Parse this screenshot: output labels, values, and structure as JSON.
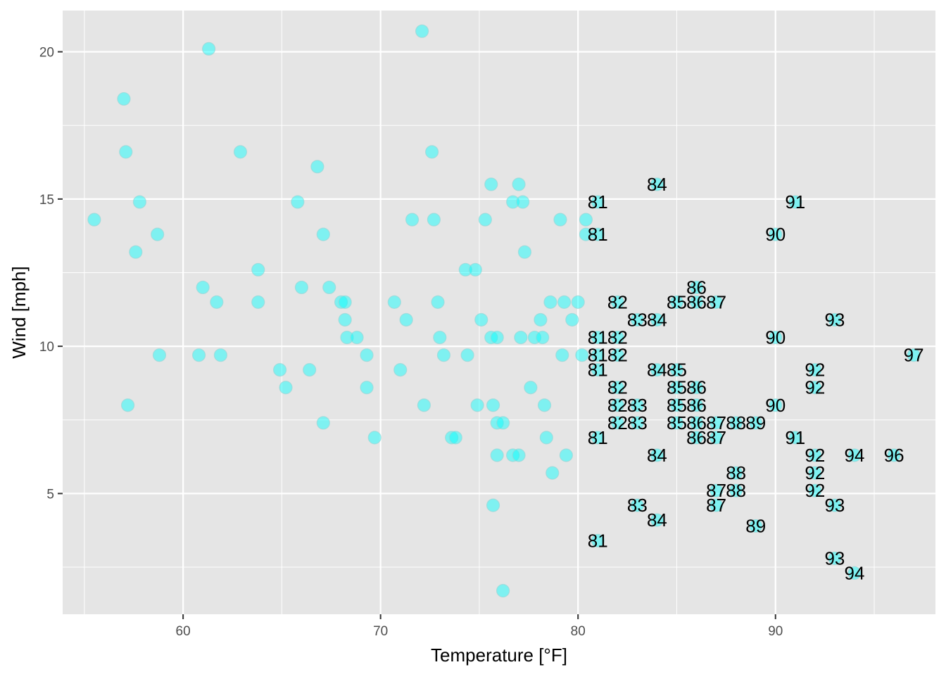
{
  "chart_data": {
    "type": "scatter",
    "title": "",
    "xlabel": "Temperature [°F]",
    "ylabel": "Wind [mph]",
    "xlim": [
      53.9,
      98.1
    ],
    "ylim": [
      0.9,
      21.4
    ],
    "x_ticks": [
      60,
      70,
      80,
      90
    ],
    "y_ticks": [
      5,
      10,
      15,
      20
    ],
    "grid": true,
    "legend": "none",
    "point_color": "#00FFFF",
    "point_opacity": 0.45,
    "panel_background": "#E5E5E5",
    "grid_color": "#FFFFFF",
    "label_threshold_note_hidden": false,
    "points": [
      {
        "x": 55.5,
        "y": 14.3
      },
      {
        "x": 57.0,
        "y": 18.4
      },
      {
        "x": 57.1,
        "y": 16.6
      },
      {
        "x": 57.2,
        "y": 8.0
      },
      {
        "x": 57.6,
        "y": 13.2
      },
      {
        "x": 57.8,
        "y": 14.9
      },
      {
        "x": 58.7,
        "y": 13.8
      },
      {
        "x": 58.8,
        "y": 9.7
      },
      {
        "x": 60.8,
        "y": 9.7
      },
      {
        "x": 61.0,
        "y": 12.0
      },
      {
        "x": 61.3,
        "y": 20.1
      },
      {
        "x": 61.7,
        "y": 11.5
      },
      {
        "x": 61.9,
        "y": 9.7
      },
      {
        "x": 62.9,
        "y": 16.6
      },
      {
        "x": 63.8,
        "y": 12.6
      },
      {
        "x": 63.8,
        "y": 11.5
      },
      {
        "x": 64.9,
        "y": 9.2
      },
      {
        "x": 65.2,
        "y": 8.6
      },
      {
        "x": 65.8,
        "y": 14.9
      },
      {
        "x": 66.0,
        "y": 12.0
      },
      {
        "x": 66.4,
        "y": 9.2
      },
      {
        "x": 66.8,
        "y": 16.1
      },
      {
        "x": 67.1,
        "y": 13.8
      },
      {
        "x": 67.1,
        "y": 7.4
      },
      {
        "x": 67.4,
        "y": 12.0
      },
      {
        "x": 68.0,
        "y": 11.5
      },
      {
        "x": 68.2,
        "y": 11.5
      },
      {
        "x": 68.2,
        "y": 10.9
      },
      {
        "x": 68.3,
        "y": 10.3
      },
      {
        "x": 68.8,
        "y": 10.3
      },
      {
        "x": 69.3,
        "y": 9.7
      },
      {
        "x": 69.3,
        "y": 8.6
      },
      {
        "x": 69.7,
        "y": 6.9
      },
      {
        "x": 70.7,
        "y": 11.5
      },
      {
        "x": 71.0,
        "y": 9.2
      },
      {
        "x": 71.3,
        "y": 10.9
      },
      {
        "x": 71.6,
        "y": 14.3
      },
      {
        "x": 72.1,
        "y": 20.7
      },
      {
        "x": 72.2,
        "y": 8.0
      },
      {
        "x": 72.6,
        "y": 16.6
      },
      {
        "x": 72.7,
        "y": 14.3
      },
      {
        "x": 72.9,
        "y": 11.5
      },
      {
        "x": 73.0,
        "y": 10.3
      },
      {
        "x": 73.2,
        "y": 9.7
      },
      {
        "x": 73.6,
        "y": 6.9
      },
      {
        "x": 73.8,
        "y": 6.9
      },
      {
        "x": 74.3,
        "y": 12.6
      },
      {
        "x": 74.4,
        "y": 9.7
      },
      {
        "x": 74.8,
        "y": 12.6
      },
      {
        "x": 74.9,
        "y": 8.0
      },
      {
        "x": 75.1,
        "y": 10.9
      },
      {
        "x": 75.3,
        "y": 14.3
      },
      {
        "x": 75.6,
        "y": 15.5
      },
      {
        "x": 75.6,
        "y": 10.3
      },
      {
        "x": 75.7,
        "y": 8.0
      },
      {
        "x": 75.7,
        "y": 4.6
      },
      {
        "x": 75.9,
        "y": 10.3
      },
      {
        "x": 75.9,
        "y": 7.4
      },
      {
        "x": 75.9,
        "y": 6.3
      },
      {
        "x": 76.2,
        "y": 7.4
      },
      {
        "x": 76.2,
        "y": 1.7
      },
      {
        "x": 76.7,
        "y": 14.9
      },
      {
        "x": 76.7,
        "y": 6.3
      },
      {
        "x": 77.0,
        "y": 15.5
      },
      {
        "x": 77.0,
        "y": 6.3
      },
      {
        "x": 77.1,
        "y": 10.3
      },
      {
        "x": 77.2,
        "y": 14.9
      },
      {
        "x": 77.3,
        "y": 13.2
      },
      {
        "x": 77.6,
        "y": 8.6
      },
      {
        "x": 77.8,
        "y": 10.3
      },
      {
        "x": 78.1,
        "y": 10.9
      },
      {
        "x": 78.2,
        "y": 10.3
      },
      {
        "x": 78.3,
        "y": 8.0
      },
      {
        "x": 78.4,
        "y": 6.9
      },
      {
        "x": 78.6,
        "y": 11.5
      },
      {
        "x": 78.7,
        "y": 5.7
      },
      {
        "x": 79.1,
        "y": 14.3
      },
      {
        "x": 79.2,
        "y": 9.7
      },
      {
        "x": 79.3,
        "y": 11.5
      },
      {
        "x": 79.4,
        "y": 6.3
      },
      {
        "x": 79.7,
        "y": 10.9
      },
      {
        "x": 80.0,
        "y": 11.5
      },
      {
        "x": 80.2,
        "y": 9.7
      },
      {
        "x": 80.4,
        "y": 14.3
      },
      {
        "x": 80.4,
        "y": 13.8
      },
      {
        "x": 81,
        "y": 14.9,
        "label": "81"
      },
      {
        "x": 81,
        "y": 13.8,
        "label": "81"
      },
      {
        "x": 81,
        "y": 10.3,
        "label": "81"
      },
      {
        "x": 81,
        "y": 9.7,
        "label": "81"
      },
      {
        "x": 81,
        "y": 9.2,
        "label": "81"
      },
      {
        "x": 81,
        "y": 6.9,
        "label": "81"
      },
      {
        "x": 81,
        "y": 3.4,
        "label": "81"
      },
      {
        "x": 82,
        "y": 11.5,
        "label": "82"
      },
      {
        "x": 82,
        "y": 10.3,
        "label": "82"
      },
      {
        "x": 82,
        "y": 9.7,
        "label": "82"
      },
      {
        "x": 82,
        "y": 8.6,
        "label": "82"
      },
      {
        "x": 82,
        "y": 8.0,
        "label": "82"
      },
      {
        "x": 82,
        "y": 7.4,
        "label": "82"
      },
      {
        "x": 83,
        "y": 10.9,
        "label": "83"
      },
      {
        "x": 83,
        "y": 8.0,
        "label": "83"
      },
      {
        "x": 83,
        "y": 7.4,
        "label": "83"
      },
      {
        "x": 83,
        "y": 4.6,
        "label": "83"
      },
      {
        "x": 84,
        "y": 15.5,
        "label": "84"
      },
      {
        "x": 84,
        "y": 10.9,
        "label": "84"
      },
      {
        "x": 84,
        "y": 9.2,
        "label": "84"
      },
      {
        "x": 84,
        "y": 6.3,
        "label": "84"
      },
      {
        "x": 84,
        "y": 4.1,
        "label": "84"
      },
      {
        "x": 85,
        "y": 11.5,
        "label": "85"
      },
      {
        "x": 85,
        "y": 9.2,
        "label": "85"
      },
      {
        "x": 85,
        "y": 8.6,
        "label": "85"
      },
      {
        "x": 85,
        "y": 8.0,
        "label": "85"
      },
      {
        "x": 85,
        "y": 7.4,
        "label": "85"
      },
      {
        "x": 86,
        "y": 12.0,
        "label": "86"
      },
      {
        "x": 86,
        "y": 11.5,
        "label": "86"
      },
      {
        "x": 86,
        "y": 8.6,
        "label": "86"
      },
      {
        "x": 86,
        "y": 8.0,
        "label": "86"
      },
      {
        "x": 86,
        "y": 7.4,
        "label": "86"
      },
      {
        "x": 86,
        "y": 6.9,
        "label": "86"
      },
      {
        "x": 87,
        "y": 11.5,
        "label": "87"
      },
      {
        "x": 87,
        "y": 7.4,
        "label": "87"
      },
      {
        "x": 87,
        "y": 6.9,
        "label": "87"
      },
      {
        "x": 87,
        "y": 5.1,
        "label": "87"
      },
      {
        "x": 87,
        "y": 4.6,
        "label": "87"
      },
      {
        "x": 88,
        "y": 7.4,
        "label": "88"
      },
      {
        "x": 88,
        "y": 5.7,
        "label": "88"
      },
      {
        "x": 88,
        "y": 5.1,
        "label": "88"
      },
      {
        "x": 89,
        "y": 7.4,
        "label": "89"
      },
      {
        "x": 89,
        "y": 3.9,
        "label": "89"
      },
      {
        "x": 90,
        "y": 13.8,
        "label": "90"
      },
      {
        "x": 90,
        "y": 10.3,
        "label": "90"
      },
      {
        "x": 90,
        "y": 8.0,
        "label": "90"
      },
      {
        "x": 91,
        "y": 14.9,
        "label": "91"
      },
      {
        "x": 91,
        "y": 6.9,
        "label": "91"
      },
      {
        "x": 92,
        "y": 9.2,
        "label": "92"
      },
      {
        "x": 92,
        "y": 8.6,
        "label": "92"
      },
      {
        "x": 92,
        "y": 6.3,
        "label": "92"
      },
      {
        "x": 92,
        "y": 5.7,
        "label": "92"
      },
      {
        "x": 92,
        "y": 5.1,
        "label": "92"
      },
      {
        "x": 93,
        "y": 10.9,
        "label": "93"
      },
      {
        "x": 93,
        "y": 4.6,
        "label": "93"
      },
      {
        "x": 93,
        "y": 2.8,
        "label": "93"
      },
      {
        "x": 94,
        "y": 6.3,
        "label": "94"
      },
      {
        "x": 94,
        "y": 2.3,
        "label": "94"
      },
      {
        "x": 96,
        "y": 6.3,
        "label": "96"
      },
      {
        "x": 97,
        "y": 9.7,
        "label": "97"
      }
    ]
  }
}
